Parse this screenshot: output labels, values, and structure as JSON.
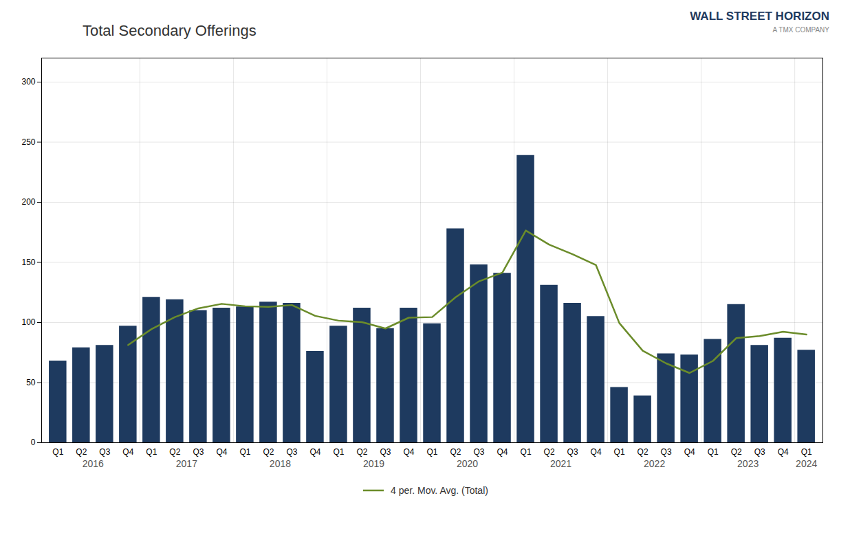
{
  "chart_data": {
    "type": "bar",
    "title": "Total Secondary Offerings",
    "categories": [
      "Q1",
      "Q2",
      "Q3",
      "Q4",
      "Q1",
      "Q2",
      "Q3",
      "Q4",
      "Q1",
      "Q2",
      "Q3",
      "Q4",
      "Q1",
      "Q2",
      "Q3",
      "Q4",
      "Q1",
      "Q2",
      "Q3",
      "Q4",
      "Q1",
      "Q2",
      "Q3",
      "Q4",
      "Q1",
      "Q2",
      "Q3",
      "Q4",
      "Q1",
      "Q2",
      "Q3",
      "Q4",
      "Q1"
    ],
    "groups": [
      {
        "label": "2016",
        "count": 4
      },
      {
        "label": "2017",
        "count": 4
      },
      {
        "label": "2018",
        "count": 4
      },
      {
        "label": "2019",
        "count": 4
      },
      {
        "label": "2020",
        "count": 4
      },
      {
        "label": "2021",
        "count": 4
      },
      {
        "label": "2022",
        "count": 4
      },
      {
        "label": "2023",
        "count": 4
      },
      {
        "label": "2024",
        "count": 1
      }
    ],
    "series": [
      {
        "type": "bar",
        "color": "#1e3a5f",
        "values": [
          68,
          79,
          81,
          97,
          121,
          119,
          110,
          112,
          113,
          117,
          116,
          76,
          97,
          112,
          95,
          112,
          99,
          178,
          148,
          141,
          239,
          131,
          116,
          105,
          46,
          39,
          74,
          73,
          86,
          115,
          81,
          87,
          77
        ]
      },
      {
        "type": "line",
        "name": "4 per. Mov. Avg. (Total)",
        "color": "#6b8c2a",
        "values": [
          null,
          null,
          null,
          81.25,
          94.5,
          104.5,
          111.75,
          115.5,
          113.5,
          113,
          114.5,
          105.5,
          101.5,
          100.25,
          95,
          104,
          104.5,
          121,
          134.25,
          141.5,
          176.5,
          164.75,
          156.75,
          147.75,
          99.5,
          76.5,
          66,
          58,
          68,
          87,
          88.75,
          92.25,
          90
        ]
      }
    ],
    "ylim": [
      0,
      320
    ],
    "yticks": [
      0,
      50,
      100,
      150,
      200,
      250,
      300
    ],
    "grid": true,
    "legend": "bottom",
    "annotations": [
      {
        "text": "WALL STREET HORIZON",
        "color": "#1e3a5f"
      },
      {
        "text": "A TMX COMPANY",
        "color": "#888888"
      }
    ]
  }
}
